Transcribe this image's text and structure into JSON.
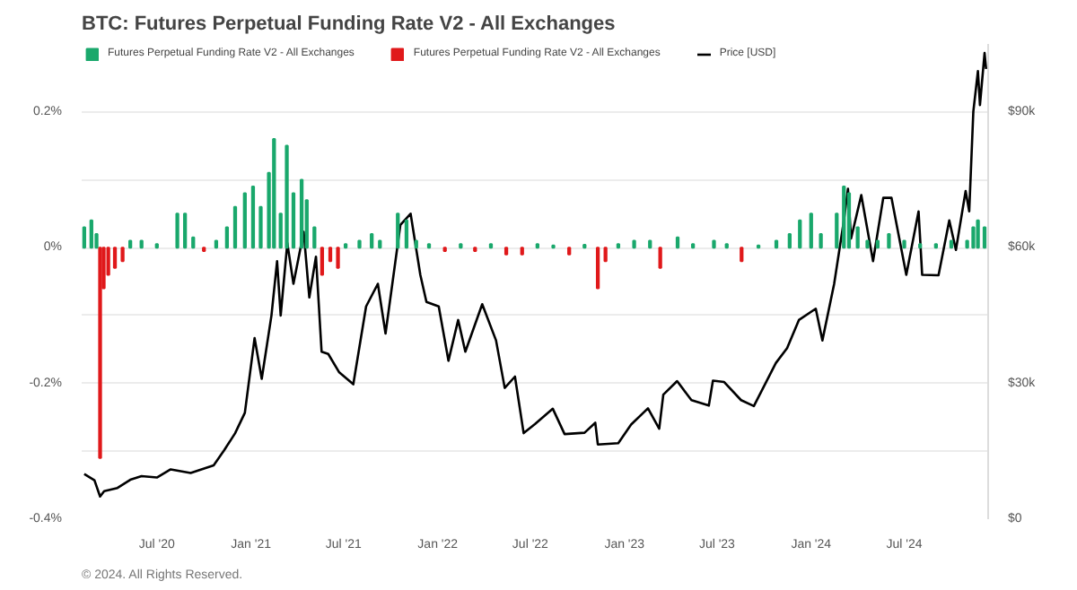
{
  "chart_data": {
    "type": "bar",
    "title": "BTC: Futures Perpetual Funding Rate V2 - All Exchanges",
    "x": [
      "2020-02-10",
      "2020-02-24",
      "2020-03-05",
      "2020-03-12",
      "2020-03-19",
      "2020-03-28",
      "2020-04-10",
      "2020-04-25",
      "2020-05-10",
      "2020-06-01",
      "2020-07-01",
      "2020-08-10",
      "2020-08-25",
      "2020-09-10",
      "2020-10-01",
      "2020-10-25",
      "2020-11-15",
      "2020-12-01",
      "2020-12-20",
      "2021-01-05",
      "2021-01-20",
      "2021-02-05",
      "2021-02-15",
      "2021-02-28",
      "2021-03-12",
      "2021-03-25",
      "2021-04-10",
      "2021-04-20",
      "2021-05-05",
      "2021-05-20",
      "2021-06-05",
      "2021-06-20",
      "2021-07-05",
      "2021-08-01",
      "2021-08-25",
      "2021-09-10",
      "2021-10-15",
      "2021-11-01",
      "2021-11-20",
      "2021-12-15",
      "2022-01-15",
      "2022-02-15",
      "2022-03-15",
      "2022-04-15",
      "2022-05-15",
      "2022-06-15",
      "2022-07-15",
      "2022-08-15",
      "2022-09-15",
      "2022-10-15",
      "2022-11-10",
      "2022-11-25",
      "2022-12-20",
      "2023-01-20",
      "2023-02-20",
      "2023-03-12",
      "2023-04-15",
      "2023-05-15",
      "2023-06-25",
      "2023-07-20",
      "2023-08-18",
      "2023-09-20",
      "2023-10-25",
      "2023-11-20",
      "2023-12-10",
      "2024-01-01",
      "2024-01-20",
      "2024-02-20",
      "2024-03-05",
      "2024-03-15",
      "2024-04-01",
      "2024-04-20",
      "2024-05-10",
      "2024-06-01",
      "2024-07-01",
      "2024-08-01",
      "2024-09-01",
      "2024-10-01",
      "2024-11-01",
      "2024-11-13",
      "2024-11-22",
      "2024-12-05"
    ],
    "series": [
      {
        "name": "Futures Perpetual Funding Rate V2 - All Exchanges",
        "color": "#1aa86c",
        "values": [
          0.03,
          0.04,
          0.02,
          null,
          null,
          null,
          null,
          null,
          0.01,
          0.01,
          0.005,
          0.05,
          0.05,
          0.015,
          null,
          0.01,
          0.03,
          0.06,
          0.08,
          0.09,
          0.06,
          0.11,
          0.16,
          0.05,
          0.15,
          0.08,
          0.1,
          0.07,
          0.03,
          null,
          null,
          null,
          0.005,
          0.01,
          0.02,
          0.01,
          0.05,
          0.04,
          0.01,
          0.005,
          null,
          0.005,
          null,
          0.005,
          null,
          null,
          0.005,
          0.003,
          null,
          0.004,
          null,
          null,
          0.005,
          0.01,
          0.01,
          null,
          0.015,
          0.005,
          0.01,
          0.005,
          null,
          0.003,
          0.01,
          0.02,
          0.04,
          0.05,
          0.02,
          0.05,
          0.09,
          0.08,
          0.03,
          0.01,
          0.01,
          0.02,
          0.01,
          0.005,
          0.005,
          0.01,
          0.01,
          0.03,
          0.04,
          0.03
        ]
      },
      {
        "name": "Futures Perpetual Funding Rate V2 - All Exchanges",
        "color": "#e0191b",
        "values": [
          null,
          null,
          null,
          -0.31,
          -0.06,
          -0.04,
          -0.03,
          -0.02,
          null,
          null,
          null,
          null,
          null,
          null,
          -0.005,
          null,
          null,
          null,
          null,
          null,
          null,
          null,
          null,
          null,
          null,
          null,
          null,
          null,
          null,
          -0.04,
          -0.02,
          -0.03,
          null,
          null,
          null,
          null,
          null,
          null,
          null,
          null,
          -0.005,
          null,
          -0.005,
          null,
          -0.01,
          -0.01,
          null,
          null,
          -0.01,
          null,
          -0.06,
          -0.02,
          null,
          null,
          null,
          -0.03,
          null,
          null,
          null,
          null,
          -0.02,
          null,
          null,
          null,
          null,
          null,
          null,
          null,
          null,
          null,
          null,
          null,
          null,
          null,
          null,
          null,
          null,
          null,
          null,
          null,
          null,
          null
        ]
      },
      {
        "name": "Price [USD]",
        "color": "#000000",
        "type": "line",
        "axis": "y2",
        "x": [
          "2020-02-10",
          "2020-03-01",
          "2020-03-12",
          "2020-03-20",
          "2020-04-15",
          "2020-05-10",
          "2020-06-01",
          "2020-07-01",
          "2020-07-28",
          "2020-09-05",
          "2020-10-20",
          "2020-11-10",
          "2020-12-01",
          "2020-12-20",
          "2021-01-08",
          "2021-01-22",
          "2021-02-10",
          "2021-02-21",
          "2021-02-28",
          "2021-03-13",
          "2021-03-25",
          "2021-04-14",
          "2021-04-25",
          "2021-05-08",
          "2021-05-19",
          "2021-06-01",
          "2021-06-22",
          "2021-07-20",
          "2021-08-14",
          "2021-09-06",
          "2021-09-21",
          "2021-10-20",
          "2021-11-09",
          "2021-11-28",
          "2021-12-10",
          "2022-01-03",
          "2022-01-22",
          "2022-02-10",
          "2022-02-24",
          "2022-03-29",
          "2022-04-25",
          "2022-05-12",
          "2022-06-01",
          "2022-06-18",
          "2022-07-10",
          "2022-08-14",
          "2022-09-06",
          "2022-10-15",
          "2022-11-05",
          "2022-11-10",
          "2022-12-20",
          "2023-01-14",
          "2023-02-16",
          "2023-03-10",
          "2023-03-18",
          "2023-04-14",
          "2023-05-12",
          "2023-06-15",
          "2023-06-23",
          "2023-07-15",
          "2023-08-17",
          "2023-09-11",
          "2023-10-24",
          "2023-11-15",
          "2023-12-08",
          "2024-01-10",
          "2024-01-23",
          "2024-02-15",
          "2024-03-05",
          "2024-03-13",
          "2024-03-19",
          "2024-04-08",
          "2024-05-01",
          "2024-05-21",
          "2024-06-06",
          "2024-07-05",
          "2024-07-29",
          "2024-08-05",
          "2024-09-06",
          "2024-09-27",
          "2024-10-10",
          "2024-10-29",
          "2024-11-05",
          "2024-11-13",
          "2024-11-22",
          "2024-11-26",
          "2024-12-05",
          "2024-12-08"
        ],
        "values": [
          10000,
          8600,
          5000,
          6200,
          6900,
          8700,
          9500,
          9200,
          11000,
          10200,
          11900,
          15300,
          19000,
          23500,
          40000,
          31000,
          45000,
          57000,
          45000,
          61000,
          52000,
          63500,
          49000,
          58000,
          37000,
          36500,
          32500,
          29800,
          47000,
          52000,
          41000,
          65000,
          67500,
          54000,
          48000,
          47000,
          35000,
          44000,
          37000,
          47500,
          39500,
          29000,
          31500,
          19000,
          21000,
          24400,
          18800,
          19100,
          21300,
          16500,
          16800,
          20900,
          24500,
          20000,
          27500,
          30500,
          26300,
          25100,
          30600,
          30300,
          26300,
          25000,
          34500,
          37800,
          44000,
          46500,
          39500,
          52000,
          66000,
          73000,
          62000,
          71600,
          57000,
          71000,
          71000,
          54000,
          68000,
          54000,
          53900,
          66000,
          59500,
          72500,
          68000,
          90000,
          99000,
          91500,
          103000,
          99500
        ]
      }
    ],
    "ylim": [
      -0.4,
      0.3
    ],
    "yticks": [
      {
        "value": -0.4,
        "label": "-0.4%"
      },
      {
        "value": -0.3,
        "label": null
      },
      {
        "value": -0.2,
        "label": "-0.2%"
      },
      {
        "value": -0.1,
        "label": null
      },
      {
        "value": 0,
        "label": "0%"
      },
      {
        "value": 0.1,
        "label": null
      },
      {
        "value": 0.2,
        "label": "0.2%"
      }
    ],
    "y2lim": [
      0,
      105000
    ],
    "y2ticks": [
      {
        "value": 0,
        "label": "$0"
      },
      {
        "value": 30000,
        "label": "$30k"
      },
      {
        "value": 60000,
        "label": "$60k"
      },
      {
        "value": 90000,
        "label": "$90k"
      }
    ],
    "xlim": [
      "2020-02-05",
      "2024-12-12"
    ],
    "xticks": [
      {
        "value": "2020-07-01",
        "label": "Jul '20"
      },
      {
        "value": "2021-01-01",
        "label": "Jan '21"
      },
      {
        "value": "2021-07-01",
        "label": "Jul '21"
      },
      {
        "value": "2022-01-01",
        "label": "Jan '22"
      },
      {
        "value": "2022-07-01",
        "label": "Jul '22"
      },
      {
        "value": "2023-01-01",
        "label": "Jan '23"
      },
      {
        "value": "2023-07-01",
        "label": "Jul '23"
      },
      {
        "value": "2024-01-01",
        "label": "Jan '24"
      },
      {
        "value": "2024-07-01",
        "label": "Jul '24"
      }
    ],
    "grid": "y",
    "legend": "top left",
    "annotations": [
      "© 2024. All Rights Reserved."
    ]
  }
}
